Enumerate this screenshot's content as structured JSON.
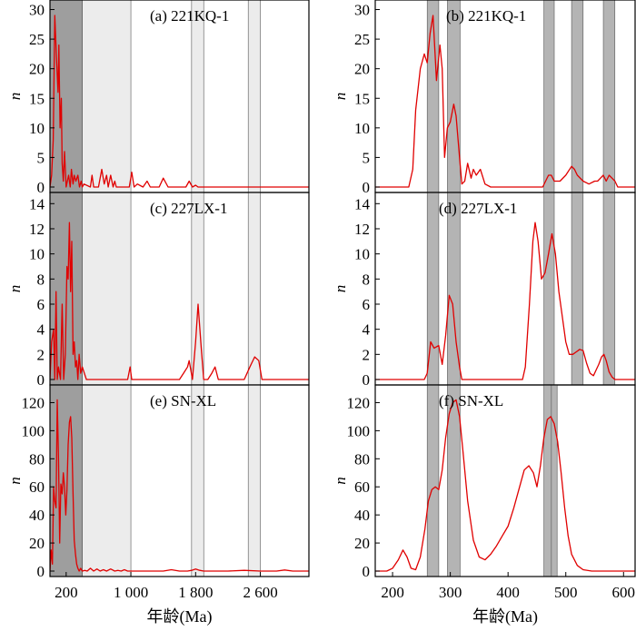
{
  "chart_data": [
    {
      "type": "line",
      "panel": "a",
      "title": "(a) 221KQ-1",
      "xlabel": "",
      "ylabel": "n",
      "xlim": [
        0,
        3200
      ],
      "ylim": [
        0,
        31
      ],
      "yticks": [
        0,
        5,
        10,
        15,
        20,
        25,
        30
      ],
      "bands": [
        {
          "range": [
            0,
            400
          ],
          "shade": "#9e9e9e"
        },
        {
          "range": [
            400,
            1000
          ],
          "shade": "#ececec"
        },
        {
          "range": [
            1750,
            1900
          ],
          "shade": "#ececec"
        },
        {
          "range": [
            2450,
            2600
          ],
          "shade": "#ececec"
        }
      ],
      "series": [
        {
          "color": "#e00000",
          "x": [
            0,
            20,
            40,
            60,
            80,
            100,
            110,
            125,
            140,
            150,
            165,
            180,
            200,
            230,
            250,
            265,
            285,
            300,
            320,
            345,
            365,
            385,
            400,
            420,
            500,
            520,
            540,
            600,
            640,
            670,
            700,
            720,
            750,
            780,
            800,
            820,
            900,
            980,
            1010,
            1040,
            1080,
            1150,
            1200,
            1240,
            1300,
            1350,
            1400,
            1460,
            1500,
            1600,
            1680,
            1720,
            1760,
            1800,
            1830,
            1900,
            2000,
            2200,
            2400,
            2600,
            2800,
            3000,
            3200
          ],
          "y": [
            0,
            2,
            8,
            29,
            22,
            16,
            24,
            10,
            15,
            4,
            1,
            6,
            0,
            2,
            0,
            3,
            0.5,
            2,
            1,
            2,
            0,
            1,
            0,
            0.5,
            0,
            2,
            0,
            0,
            3,
            0.5,
            2,
            0,
            2,
            0,
            1,
            0,
            0,
            0,
            2.5,
            0,
            0.5,
            0,
            1,
            0,
            0,
            0,
            1.5,
            0,
            0,
            0,
            0,
            1,
            0,
            0.3,
            0,
            0,
            0,
            0,
            0,
            0,
            0,
            0,
            0
          ]
        }
      ]
    },
    {
      "type": "line",
      "panel": "b",
      "title": "(b) 221KQ-1",
      "xlabel": "",
      "ylabel": "n",
      "xlim": [
        170,
        620
      ],
      "ylim": [
        0,
        31
      ],
      "yticks": [
        0,
        5,
        10,
        15,
        20,
        25,
        30
      ],
      "bands": [
        {
          "range": [
            260,
            280
          ],
          "shade": "#b4b4b4"
        },
        {
          "range": [
            295,
            317
          ],
          "shade": "#b4b4b4"
        },
        {
          "range": [
            462,
            480
          ],
          "shade": "#b4b4b4"
        },
        {
          "range": [
            510,
            530
          ],
          "shade": "#b4b4b4"
        },
        {
          "range": [
            565,
            585
          ],
          "shade": "#b4b4b4"
        }
      ],
      "series": [
        {
          "color": "#e00000",
          "x": [
            170,
            228,
            235,
            240,
            248,
            255,
            260,
            265,
            270,
            276,
            282,
            286,
            290,
            295,
            300,
            306,
            310,
            316,
            320,
            325,
            330,
            336,
            340,
            345,
            352,
            360,
            370,
            380,
            400,
            450,
            460,
            465,
            470,
            475,
            480,
            485,
            490,
            500,
            510,
            515,
            520,
            530,
            540,
            550,
            555,
            560,
            565,
            570,
            575,
            580,
            585,
            590,
            600,
            620
          ],
          "y": [
            0,
            0,
            3,
            13,
            20,
            22.5,
            21,
            26,
            29,
            18,
            24,
            20,
            5,
            10,
            11,
            14,
            12,
            5,
            0.5,
            1,
            4,
            1.5,
            3,
            2,
            3,
            0.5,
            0,
            0,
            0,
            0,
            0,
            1,
            2,
            2,
            1,
            1,
            1,
            2,
            3.5,
            3,
            2,
            1,
            0.5,
            1,
            1,
            1.5,
            2,
            1,
            2,
            1.5,
            1,
            0,
            0,
            0
          ]
        }
      ]
    },
    {
      "type": "line",
      "panel": "c",
      "title": "(c) 227LX-1",
      "xlabel": "",
      "ylabel": "n",
      "xlim": [
        0,
        3200
      ],
      "ylim": [
        0,
        14.6
      ],
      "yticks": [
        0,
        2,
        4,
        6,
        8,
        10,
        12,
        14
      ],
      "bands": [
        {
          "range": [
            0,
            400
          ],
          "shade": "#9e9e9e"
        },
        {
          "range": [
            400,
            1000
          ],
          "shade": "#ececec"
        },
        {
          "range": [
            1750,
            1900
          ],
          "shade": "#ececec"
        },
        {
          "range": [
            2450,
            2600
          ],
          "shade": "#ececec"
        }
      ],
      "series": [
        {
          "color": "#e00000",
          "x": [
            0,
            20,
            45,
            60,
            75,
            90,
            105,
            130,
            150,
            170,
            190,
            210,
            225,
            240,
            255,
            270,
            285,
            300,
            315,
            330,
            345,
            360,
            380,
            400,
            450,
            900,
            960,
            990,
            1010,
            1040,
            1200,
            1500,
            1600,
            1650,
            1700,
            1720,
            1760,
            1800,
            1830,
            1870,
            1900,
            1950,
            2000,
            2040,
            2080,
            2150,
            2300,
            2400,
            2470,
            2530,
            2580,
            2620,
            2700,
            2800,
            3200
          ],
          "y": [
            0,
            3,
            4,
            0,
            7,
            0,
            1,
            0,
            6,
            0,
            2,
            9,
            8,
            12.5,
            7,
            11,
            2,
            3,
            1,
            1.5,
            0,
            2,
            0.5,
            1,
            0,
            0,
            0,
            1,
            0,
            0,
            0,
            0,
            0,
            0.5,
            1,
            1.5,
            0,
            3,
            6,
            2.5,
            0,
            0,
            0.5,
            1,
            0,
            0,
            0,
            0,
            1,
            1.8,
            1.5,
            0,
            0,
            0,
            0
          ]
        }
      ]
    },
    {
      "type": "line",
      "panel": "d",
      "title": "(d) 227LX-1",
      "xlabel": "",
      "ylabel": "n",
      "xlim": [
        170,
        620
      ],
      "ylim": [
        0,
        14.6
      ],
      "yticks": [
        0,
        2,
        4,
        6,
        8,
        10,
        12,
        14
      ],
      "bands": [
        {
          "range": [
            260,
            280
          ],
          "shade": "#b4b4b4"
        },
        {
          "range": [
            295,
            317
          ],
          "shade": "#b4b4b4"
        },
        {
          "range": [
            462,
            480
          ],
          "shade": "#b4b4b4"
        },
        {
          "range": [
            510,
            530
          ],
          "shade": "#b4b4b4"
        },
        {
          "range": [
            565,
            585
          ],
          "shade": "#b4b4b4"
        }
      ],
      "series": [
        {
          "color": "#e00000",
          "x": [
            170,
            255,
            260,
            266,
            272,
            280,
            286,
            292,
            298,
            304,
            310,
            316,
            320,
            326,
            340,
            400,
            425,
            430,
            437,
            443,
            447,
            452,
            458,
            464,
            470,
            476,
            482,
            488,
            494,
            500,
            506,
            512,
            518,
            524,
            530,
            536,
            542,
            548,
            553,
            557,
            562,
            566,
            570,
            575,
            580,
            585,
            590,
            600,
            620
          ],
          "y": [
            0,
            0,
            0.5,
            3,
            2.5,
            2.7,
            1.2,
            3.5,
            6.7,
            6,
            3,
            1,
            0,
            0,
            0,
            0,
            0,
            1,
            6,
            11,
            12.5,
            11,
            8,
            8.5,
            10,
            11.6,
            10,
            7,
            5,
            3,
            2,
            2,
            2.2,
            2.4,
            2.3,
            1.3,
            0.5,
            0.3,
            0.8,
            1.2,
            1.8,
            2,
            1.5,
            0.6,
            0.2,
            0,
            0,
            0,
            0
          ]
        }
      ]
    },
    {
      "type": "line",
      "panel": "e",
      "title": "(e) SN-XL",
      "xlabel": "年龄(Ma)",
      "ylabel": "n",
      "xlim": [
        0,
        3200
      ],
      "ylim": [
        0,
        130
      ],
      "yticks": [
        0,
        20,
        40,
        60,
        80,
        100,
        120
      ],
      "xticks": [
        {
          "value": 200,
          "label": "200"
        },
        {
          "value": 1000,
          "label": "1 000"
        },
        {
          "value": 1800,
          "label": "1 800"
        },
        {
          "value": 2600,
          "label": "2 600"
        }
      ],
      "bands": [
        {
          "range": [
            0,
            400
          ],
          "shade": "#9e9e9e"
        },
        {
          "range": [
            400,
            1000
          ],
          "shade": "#ececec"
        },
        {
          "range": [
            1750,
            1900
          ],
          "shade": "#ececec"
        },
        {
          "range": [
            2450,
            2600
          ],
          "shade": "#ececec"
        }
      ],
      "series": [
        {
          "color": "#e00000",
          "x": [
            0,
            15,
            30,
            45,
            60,
            75,
            90,
            105,
            120,
            135,
            150,
            165,
            180,
            195,
            210,
            225,
            240,
            255,
            270,
            285,
            300,
            315,
            330,
            345,
            360,
            380,
            400,
            430,
            460,
            500,
            540,
            580,
            620,
            660,
            700,
            750,
            800,
            840,
            880,
            920,
            960,
            1100,
            1400,
            1500,
            1600,
            1700,
            1750,
            1800,
            1850,
            1900,
            2000,
            2200,
            2400,
            2600,
            2800,
            2900,
            3000,
            3200
          ],
          "y": [
            0,
            15,
            5,
            60,
            50,
            45,
            122,
            80,
            20,
            62,
            55,
            70,
            60,
            40,
            58,
            90,
            106,
            110,
            95,
            55,
            22,
            12,
            5,
            2,
            0,
            2,
            0,
            0.5,
            0,
            2,
            0,
            1.5,
            0,
            1,
            0,
            1.5,
            0,
            0.5,
            0,
            1,
            0,
            0,
            0,
            1,
            0,
            0,
            0.5,
            1.5,
            0.5,
            0,
            0,
            0,
            0.5,
            0,
            0,
            0.8,
            0,
            0
          ]
        }
      ]
    },
    {
      "type": "line",
      "panel": "f",
      "title": "(f) SN-XL",
      "xlabel": "年龄(Ma)",
      "ylabel": "n",
      "xlim": [
        170,
        620
      ],
      "ylim": [
        0,
        130
      ],
      "yticks": [
        0,
        20,
        40,
        60,
        80,
        100,
        120
      ],
      "xticks": [
        {
          "value": 200,
          "label": "200"
        },
        {
          "value": 300,
          "label": "300"
        },
        {
          "value": 400,
          "label": "400"
        },
        {
          "value": 500,
          "label": "500"
        },
        {
          "value": 600,
          "label": "600"
        }
      ],
      "bands": [
        {
          "range": [
            260,
            280
          ],
          "shade": "#b4b4b4"
        },
        {
          "range": [
            295,
            317
          ],
          "shade": "#b4b4b4"
        },
        {
          "range": [
            462,
            480
          ],
          "shade": "#b4b4b4"
        },
        {
          "range": [
            475,
            485
          ],
          "shade": "#b4b4b4"
        }
      ],
      "series": [
        {
          "color": "#e00000",
          "x": [
            170,
            190,
            200,
            210,
            218,
            225,
            232,
            240,
            248,
            256,
            262,
            268,
            274,
            280,
            286,
            292,
            298,
            304,
            310,
            316,
            322,
            330,
            340,
            350,
            360,
            370,
            380,
            390,
            400,
            410,
            420,
            428,
            436,
            444,
            450,
            456,
            462,
            468,
            474,
            480,
            486,
            492,
            498,
            504,
            510,
            520,
            530,
            545,
            560,
            580,
            600,
            620
          ],
          "y": [
            0,
            0,
            2,
            8,
            15,
            10,
            2,
            1,
            10,
            30,
            50,
            58,
            60,
            58,
            72,
            95,
            112,
            120,
            122,
            110,
            85,
            50,
            22,
            10,
            8,
            12,
            18,
            25,
            32,
            45,
            60,
            72,
            75,
            70,
            60,
            75,
            95,
            108,
            110,
            105,
            92,
            70,
            45,
            25,
            12,
            4,
            1,
            0,
            0,
            0,
            0,
            0
          ]
        }
      ]
    }
  ]
}
